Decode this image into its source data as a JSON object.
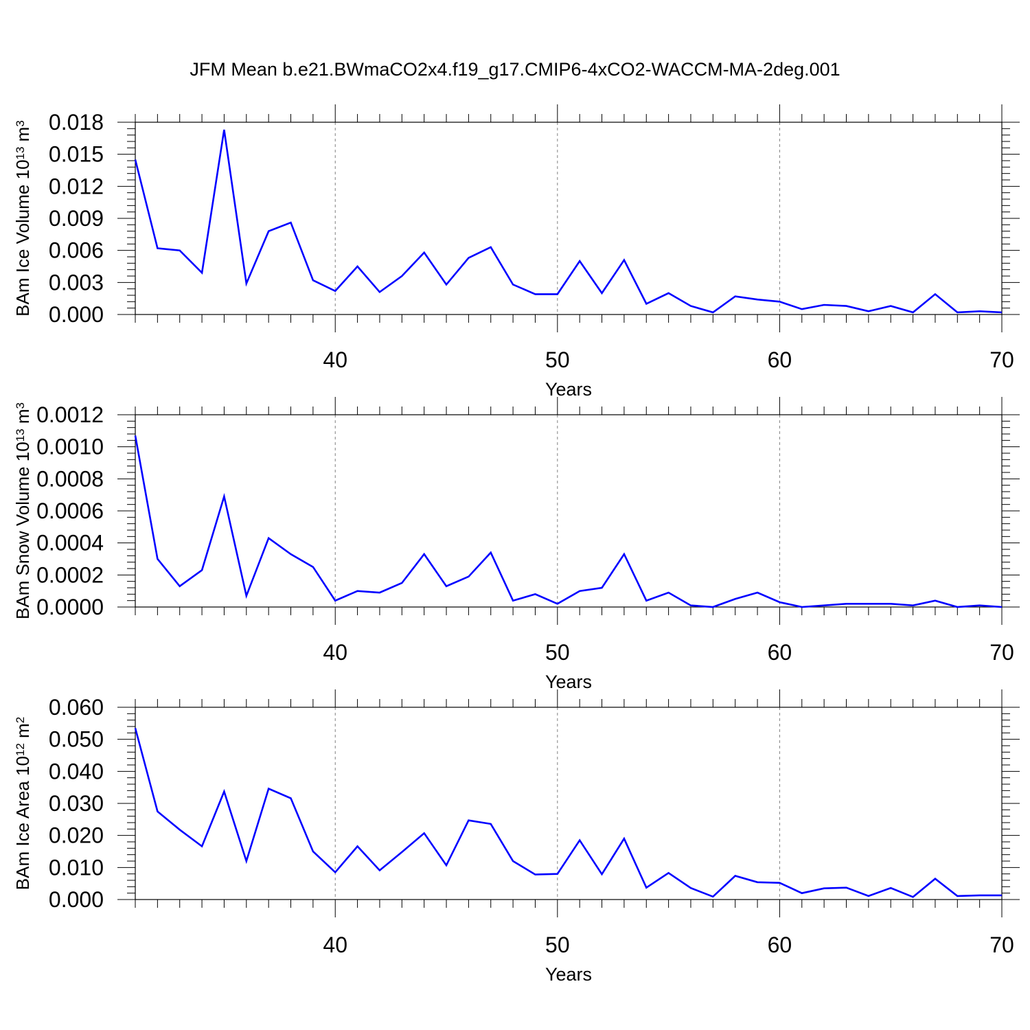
{
  "title": "JFM Mean b.e21.BWmaCO2x4.f19_g17.CMIP6-4xCO2-WACCM-MA-2deg.001",
  "colors": {
    "line": "#0000ff",
    "axis": "#000000",
    "grid": "#808080"
  },
  "chart_data": [
    {
      "type": "line",
      "name": "ice-volume",
      "ylabel": "BAm Ice Volume 10",
      "ylabel_sup": "13",
      "ylabel_unit": " m",
      "ylabel_unit_sup": "3",
      "xlabel": "Years",
      "xlim": [
        31,
        70
      ],
      "ylim": [
        0,
        0.018
      ],
      "yticks": [
        0.0,
        0.003,
        0.006,
        0.009,
        0.012,
        0.015,
        0.018
      ],
      "ytick_labels": [
        "0.000",
        "0.003",
        "0.006",
        "0.009",
        "0.012",
        "0.015",
        "0.018"
      ],
      "xticks": [
        40,
        50,
        60,
        70
      ],
      "xtick_labels": [
        "40",
        "50",
        "60",
        "70"
      ],
      "x": [
        31,
        32,
        33,
        34,
        35,
        36,
        37,
        38,
        39,
        40,
        41,
        42,
        43,
        44,
        45,
        46,
        47,
        48,
        49,
        50,
        51,
        52,
        53,
        54,
        55,
        56,
        57,
        58,
        59,
        60,
        61,
        62,
        63,
        64,
        65,
        66,
        67,
        68,
        69,
        70
      ],
      "series": [
        {
          "values": [
            0.0145,
            0.0062,
            0.006,
            0.0039,
            0.0173,
            0.0029,
            0.0078,
            0.0086,
            0.0032,
            0.0022,
            0.0045,
            0.0021,
            0.0036,
            0.0058,
            0.0028,
            0.0053,
            0.0063,
            0.0028,
            0.0019,
            0.0019,
            0.005,
            0.002,
            0.0051,
            0.001,
            0.002,
            0.0008,
            0.0002,
            0.0017,
            0.0014,
            0.0012,
            0.0005,
            0.0009,
            0.0008,
            0.0003,
            0.0008,
            0.0002,
            0.0019,
            0.0002,
            0.0003,
            0.0002
          ]
        }
      ]
    },
    {
      "type": "line",
      "name": "snow-volume",
      "ylabel": "BAm Snow Volume 10",
      "ylabel_sup": "13",
      "ylabel_unit": " m",
      "ylabel_unit_sup": "3",
      "xlabel": "Years",
      "xlim": [
        31,
        70
      ],
      "ylim": [
        0,
        0.0012
      ],
      "yticks": [
        0.0,
        0.0002,
        0.0004,
        0.0006,
        0.0008,
        0.001,
        0.0012
      ],
      "ytick_labels": [
        "0.0000",
        "0.0002",
        "0.0004",
        "0.0006",
        "0.0008",
        "0.0010",
        "0.0012"
      ],
      "xticks": [
        40,
        50,
        60,
        70
      ],
      "xtick_labels": [
        "40",
        "50",
        "60",
        "70"
      ],
      "x": [
        31,
        32,
        33,
        34,
        35,
        36,
        37,
        38,
        39,
        40,
        41,
        42,
        43,
        44,
        45,
        46,
        47,
        48,
        49,
        50,
        51,
        52,
        53,
        54,
        55,
        56,
        57,
        58,
        59,
        60,
        61,
        62,
        63,
        64,
        65,
        66,
        67,
        68,
        69,
        70
      ],
      "series": [
        {
          "values": [
            0.00107,
            0.0003,
            0.00013,
            0.00023,
            0.00069,
            7e-05,
            0.00043,
            0.00033,
            0.00025,
            4e-05,
            0.0001,
            9e-05,
            0.00015,
            0.00033,
            0.00013,
            0.00019,
            0.00034,
            4e-05,
            8e-05,
            2e-05,
            0.0001,
            0.00012,
            0.00033,
            4e-05,
            9e-05,
            1e-05,
            0.0,
            5e-05,
            9e-05,
            3e-05,
            0.0,
            1e-05,
            2e-05,
            2e-05,
            2e-05,
            1e-05,
            4e-05,
            0.0,
            1e-05,
            0.0
          ]
        }
      ]
    },
    {
      "type": "line",
      "name": "ice-area",
      "ylabel": "BAm Ice Area 10",
      "ylabel_sup": "12",
      "ylabel_unit": " m",
      "ylabel_unit_sup": "2",
      "xlabel": "Years",
      "xlim": [
        31,
        70
      ],
      "ylim": [
        0,
        0.06
      ],
      "yticks": [
        0.0,
        0.01,
        0.02,
        0.03,
        0.04,
        0.05,
        0.06
      ],
      "ytick_labels": [
        "0.000",
        "0.010",
        "0.020",
        "0.030",
        "0.040",
        "0.050",
        "0.060"
      ],
      "xticks": [
        40,
        50,
        60,
        70
      ],
      "xtick_labels": [
        "40",
        "50",
        "60",
        "70"
      ],
      "x": [
        31,
        32,
        33,
        34,
        35,
        36,
        37,
        38,
        39,
        40,
        41,
        42,
        43,
        44,
        45,
        46,
        47,
        48,
        49,
        50,
        51,
        52,
        53,
        54,
        55,
        56,
        57,
        58,
        59,
        60,
        61,
        62,
        63,
        64,
        65,
        66,
        67,
        68,
        69,
        70
      ],
      "series": [
        {
          "values": [
            0.0535,
            0.0275,
            0.0218,
            0.0166,
            0.0337,
            0.012,
            0.0346,
            0.0316,
            0.015,
            0.0085,
            0.0166,
            0.0091,
            0.0148,
            0.0207,
            0.0107,
            0.0247,
            0.0236,
            0.012,
            0.0078,
            0.008,
            0.0185,
            0.0079,
            0.019,
            0.0037,
            0.0083,
            0.0036,
            0.0009,
            0.0074,
            0.0054,
            0.0052,
            0.002,
            0.0035,
            0.0037,
            0.0011,
            0.0036,
            0.0008,
            0.0065,
            0.0011,
            0.0013,
            0.0013
          ]
        }
      ]
    }
  ]
}
